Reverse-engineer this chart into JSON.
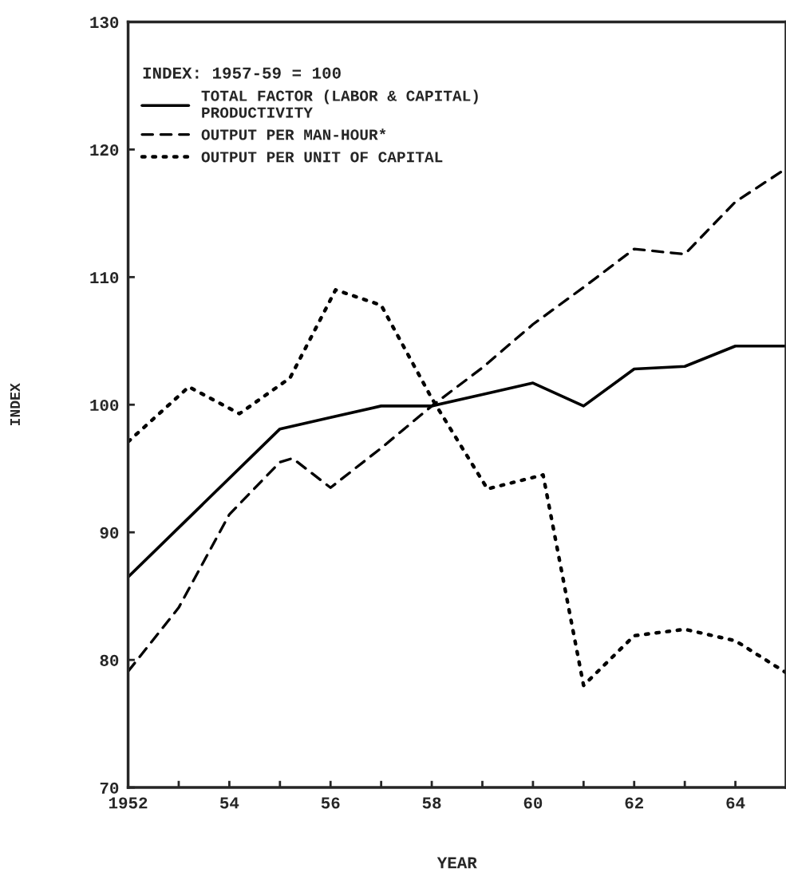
{
  "chart_data": {
    "type": "line",
    "xlabel": "YEAR",
    "ylabel": "INDEX",
    "legend_title": "INDEX: 1957-59 = 100",
    "legend": "top left",
    "grid": false,
    "xlim": [
      1952,
      1965
    ],
    "ylim": [
      70,
      130
    ],
    "xticks": [
      {
        "value": 1952,
        "label": "1952"
      },
      {
        "value": 1953,
        "label": null
      },
      {
        "value": 1954,
        "label": "54"
      },
      {
        "value": 1955,
        "label": null
      },
      {
        "value": 1956,
        "label": "56"
      },
      {
        "value": 1957,
        "label": null
      },
      {
        "value": 1958,
        "label": "58"
      },
      {
        "value": 1959,
        "label": null
      },
      {
        "value": 1960,
        "label": "60"
      },
      {
        "value": 1961,
        "label": null
      },
      {
        "value": 1962,
        "label": "62"
      },
      {
        "value": 1963,
        "label": null
      },
      {
        "value": 1964,
        "label": "64"
      }
    ],
    "yticks": [
      70,
      80,
      90,
      100,
      110,
      120,
      130
    ],
    "series": [
      {
        "name": "TOTAL FACTOR (LABOR & CAPITAL)\nPRODUCTIVITY",
        "color": "#000000",
        "line_style": "solid",
        "x": [
          1952,
          1955,
          1956,
          1957,
          1958,
          1959,
          1960,
          1961,
          1962,
          1963,
          1964,
          1965
        ],
        "values": [
          86.5,
          98.1,
          99,
          99.9,
          99.9,
          100.8,
          101.7,
          99.9,
          102.8,
          103,
          104.6,
          104.6
        ]
      },
      {
        "name": "OUTPUT PER MAN-HOUR*",
        "color": "#000000",
        "line_style": "dashed",
        "x": [
          1952,
          1953,
          1954,
          1955,
          1955.25,
          1956,
          1957,
          1958,
          1959,
          1960,
          1961,
          1962,
          1963,
          1964,
          1965
        ],
        "values": [
          79.1,
          84.1,
          91.4,
          95.5,
          95.8,
          93.5,
          96.6,
          99.9,
          102.9,
          106.3,
          109.2,
          112.2,
          111.8,
          115.9,
          118.5
        ]
      },
      {
        "name": "OUTPUT PER UNIT OF CAPITAL",
        "color": "#000000",
        "line_style": "dotted",
        "x": [
          1952,
          1953.2,
          1954.2,
          1955.2,
          1956.1,
          1957,
          1958,
          1959.1,
          1960.2,
          1961,
          1962,
          1963,
          1964,
          1965
        ],
        "values": [
          97.1,
          101.4,
          99.3,
          102.1,
          109,
          107.8,
          100.5,
          93.4,
          94.5,
          78,
          81.9,
          82.4,
          81.5,
          79
        ]
      }
    ]
  }
}
